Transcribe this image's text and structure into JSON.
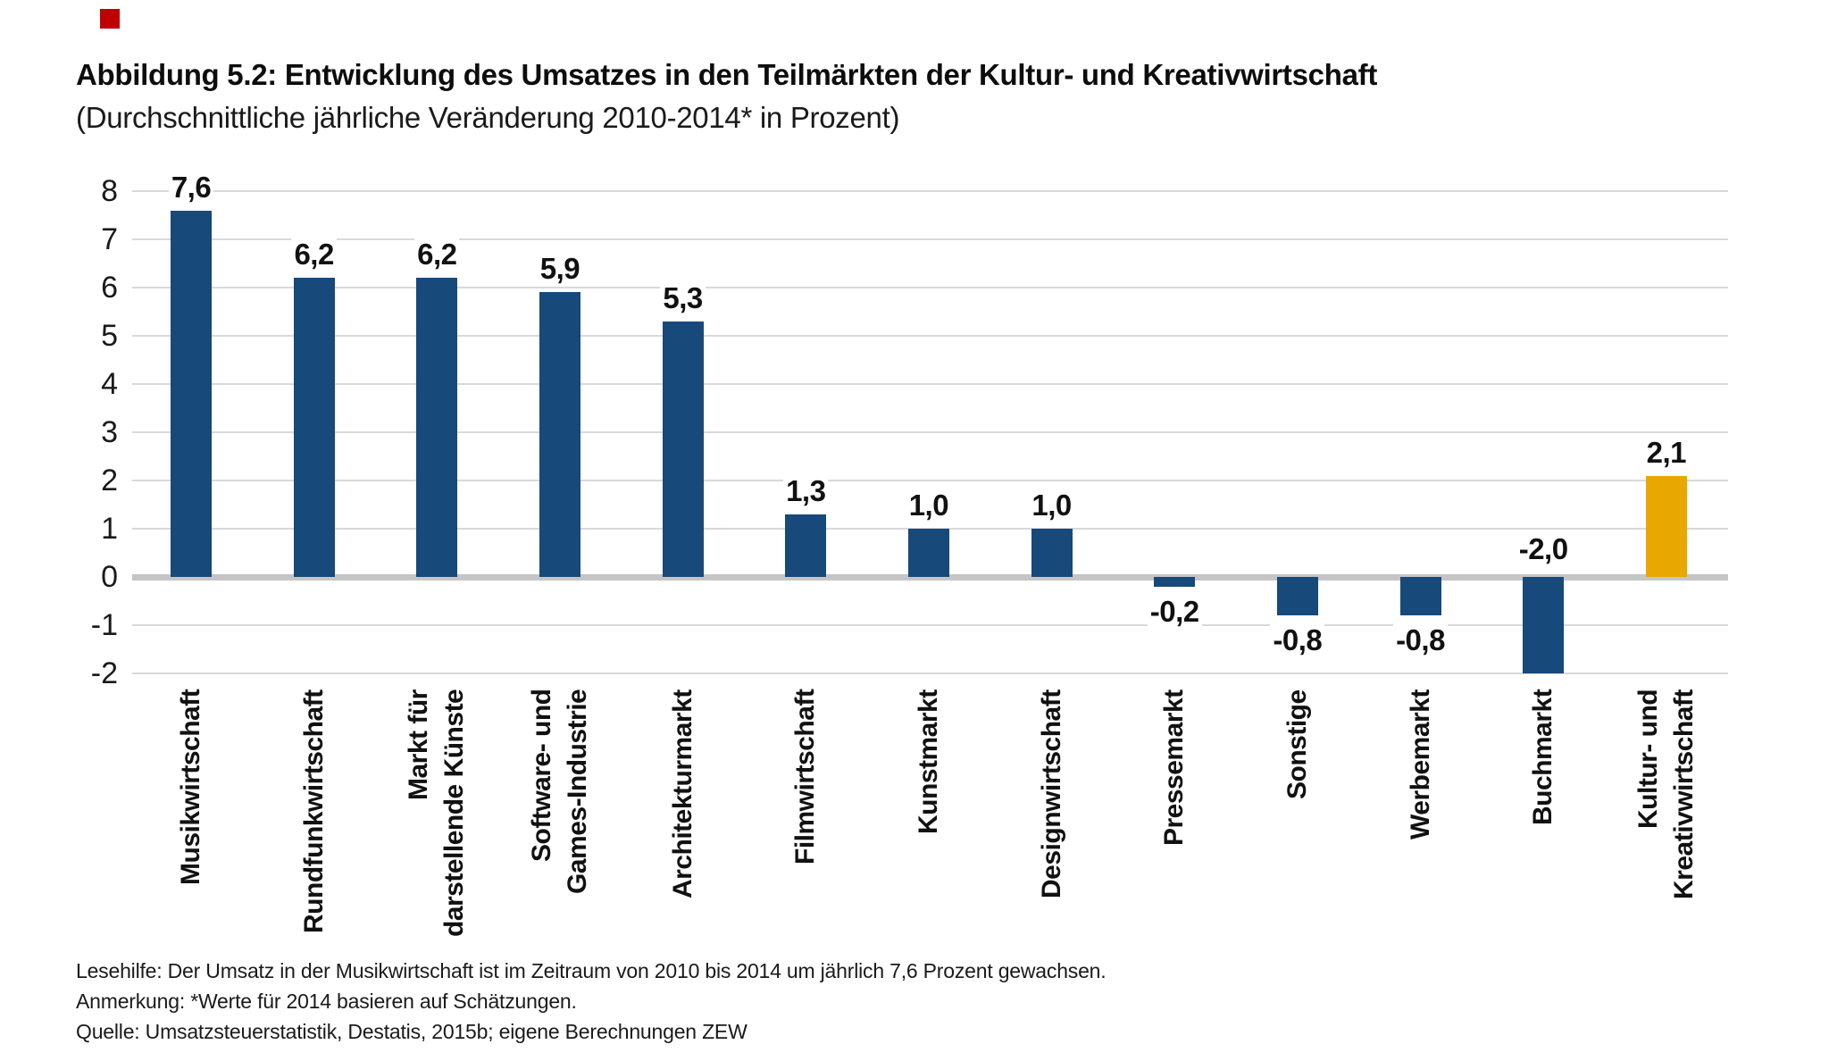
{
  "marker": {
    "color": "#c00000"
  },
  "chart_data": {
    "type": "bar",
    "title": "Abbildung 5.2: Entwicklung des Umsatzes in den Teilmärkten der Kultur- und Kreativwirtschaft",
    "subtitle": "(Durchschnittliche jährliche Veränderung 2010-2014* in Prozent)",
    "categories": [
      "Musikwirtschaft",
      "Rundfunkwirtschaft",
      "Markt für\ndarstellende Künste",
      "Software- und\nGames-Industrie",
      "Architekturmarkt",
      "Filmwirtschaft",
      "Kunstmarkt",
      "Designwirtschaft",
      "Pressemarkt",
      "Sonstige",
      "Werbemarkt",
      "Buchmarkt",
      "Kultur- und\nKreativwirtschaft"
    ],
    "values": [
      7.6,
      6.2,
      6.2,
      5.9,
      5.3,
      1.3,
      1.0,
      1.0,
      -0.2,
      -0.8,
      -0.8,
      -2.0,
      2.1
    ],
    "value_labels": [
      "7,6",
      "6,2",
      "6,2",
      "5,9",
      "5,3",
      "1,3",
      "1,0",
      "1,0",
      "-0,2",
      "-0,8",
      "-0,8",
      "-2,0",
      "2,1"
    ],
    "value_label_pos": [
      "above",
      "above",
      "above",
      "above",
      "above",
      "above",
      "above",
      "above",
      "below",
      "below",
      "below",
      "above_axis",
      "above"
    ],
    "yticks": [
      8,
      7,
      6,
      5,
      4,
      3,
      2,
      1,
      0,
      -1,
      -2
    ],
    "ylim": [
      -2,
      8
    ],
    "grid": true,
    "legend": "none",
    "bar_color": "#17497a",
    "highlight_index": 12,
    "highlight_color": "#e9a800",
    "gridline_color": "#d9d9d9",
    "zero_line_color": "#c5c5c5"
  },
  "footer": {
    "lines": [
      "Lesehilfe: Der Umsatz in der Musikwirtschaft ist im Zeitraum von 2010 bis 2014 um jährlich 7,6 Prozent gewachsen.",
      "Anmerkung: *Werte für 2014 basieren auf Schätzungen.",
      "Quelle: Umsatzsteuerstatistik, Destatis, 2015b; eigene Berechnungen ZEW"
    ]
  }
}
